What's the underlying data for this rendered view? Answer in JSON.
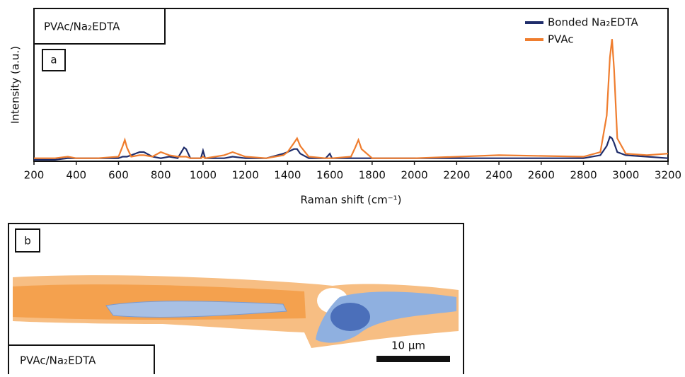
{
  "chart_data": {
    "type": "line",
    "sample_label": "PVAc/Na₂EDTA",
    "panel_label": "a",
    "xlabel": "Raman shift (cm⁻¹)",
    "ylabel": "Intensity (a.u.)",
    "xlim": [
      200,
      3200
    ],
    "xticks": [
      200,
      400,
      600,
      800,
      1000,
      1200,
      1400,
      1600,
      1800,
      2000,
      2200,
      2400,
      2600,
      2800,
      3000,
      3200
    ],
    "ylim": [
      0,
      100
    ],
    "legend": "upper right",
    "x": [
      200,
      300,
      360,
      400,
      500,
      600,
      620,
      630,
      640,
      660,
      700,
      720,
      760,
      800,
      840,
      880,
      910,
      920,
      940,
      990,
      1000,
      1010,
      1100,
      1140,
      1200,
      1300,
      1380,
      1400,
      1430,
      1445,
      1460,
      1500,
      1580,
      1600,
      1610,
      1700,
      1720,
      1735,
      1750,
      1800,
      2000,
      2400,
      2800,
      2880,
      2910,
      2925,
      2935,
      2945,
      2960,
      3000,
      3100,
      3200
    ],
    "series": [
      {
        "name": "Bonded Na₂EDTA",
        "color": "#1f2d6b",
        "values": [
          1,
          1,
          2,
          2,
          2,
          2,
          3,
          3,
          3,
          4,
          6,
          6,
          3,
          2,
          3,
          2,
          9,
          8,
          2,
          2,
          7,
          2,
          2,
          3,
          2,
          2,
          5,
          6,
          8,
          8,
          5,
          2,
          2,
          5,
          2,
          2,
          2,
          2,
          2,
          2,
          2,
          2,
          2,
          4,
          10,
          16,
          15,
          12,
          6,
          4,
          3,
          2
        ]
      },
      {
        "name": "PVAc",
        "color": "#ef7d2e",
        "values": [
          2,
          2,
          3,
          2,
          2,
          3,
          10,
          14,
          9,
          3,
          4,
          4,
          3,
          6,
          4,
          3,
          3,
          3,
          2,
          2,
          3,
          2,
          4,
          6,
          3,
          2,
          4,
          6,
          12,
          15,
          10,
          3,
          2,
          2,
          2,
          3,
          9,
          14,
          8,
          2,
          2,
          4,
          3,
          6,
          30,
          68,
          80,
          60,
          15,
          5,
          4,
          5
        ]
      }
    ]
  },
  "map_panel": {
    "panel_label": "b",
    "sample_label": "PVAc/Na₂EDTA",
    "scale_label": "10 μm"
  }
}
